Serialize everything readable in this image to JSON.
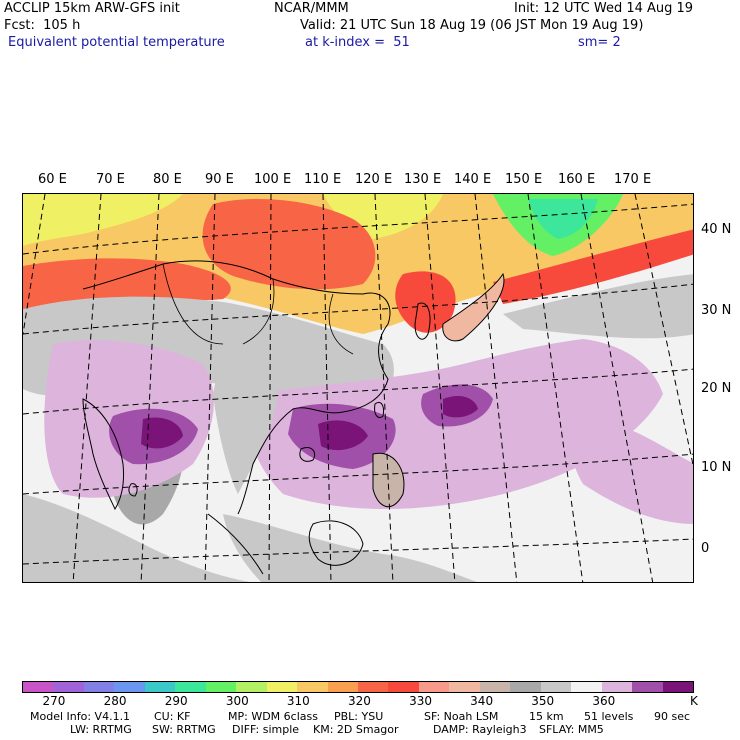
{
  "header": {
    "model": "ACCLIP 15km ARW-GFS init",
    "forecast": "Fcst:  105 h",
    "field": "Equivalent potential temperature",
    "center": "NCAR/MMM",
    "init": "Init: 12 UTC Wed 14 Aug 19",
    "valid": "Valid: 21 UTC Sun 18 Aug 19 (06 JST Mon 19 Aug 19)",
    "level": "at k-index =  51",
    "smoothing": "sm= 2"
  },
  "map": {
    "lon_labels": [
      "60 E",
      "70 E",
      "80 E",
      "90 E",
      "100 E",
      "110 E",
      "120 E",
      "130 E",
      "140 E",
      "150 E",
      "160 E",
      "170 E"
    ],
    "lat_labels": [
      "40 N",
      "30 N",
      "20 N",
      "10 N",
      "0"
    ]
  },
  "colorbar": {
    "colors": [
      "#c855c8",
      "#a064d8",
      "#8080e6",
      "#6a96f0",
      "#3cc8c8",
      "#3ce69a",
      "#64f064",
      "#b4f064",
      "#f0f064",
      "#f8c864",
      "#f8a050",
      "#f86446",
      "#f84a3c",
      "#f89a8a",
      "#f0b8a0",
      "#c8b4a8",
      "#a8a8a8",
      "#c8c8c8",
      "#f2f2f2",
      "#dcb4dc",
      "#a050a8",
      "#7a1478"
    ],
    "tick_labels": [
      "270",
      "280",
      "290",
      "300",
      "310",
      "320",
      "330",
      "340",
      "350",
      "360"
    ],
    "unit": "K"
  },
  "footer": {
    "line1": [
      "Model Info: V4.1.1",
      "CU: KF",
      "MP: WDM 6class",
      "PBL: YSU",
      "SF: Noah LSM",
      "15 km",
      "51 levels",
      "90 sec"
    ],
    "line2": [
      "LW: RRTMG",
      "SW: RRTMG",
      "DIFF: simple",
      "KM: 2D Smagor",
      "DAMP: Rayleigh3",
      "SFLAY: MM5"
    ]
  }
}
